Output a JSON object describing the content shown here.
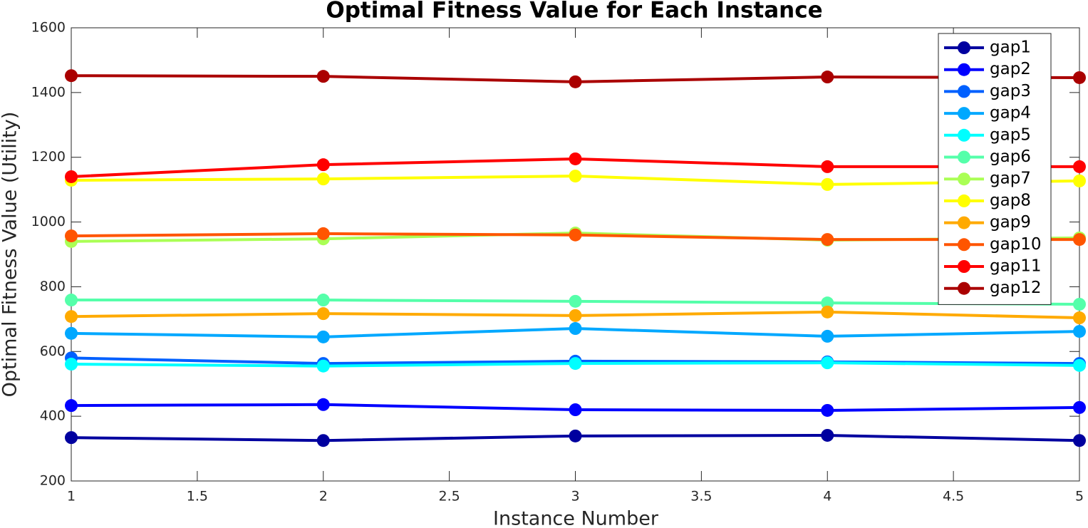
{
  "chart_data": {
    "type": "line",
    "title": "Optimal Fitness Value for Each Instance",
    "x_label": "Instance Number",
    "y_label": "Optimal Fitness Value (Utility)",
    "x": [
      1,
      2,
      3,
      4,
      5
    ],
    "xlim": [
      1,
      5
    ],
    "xticks": [
      1,
      1.5,
      2,
      2.5,
      3,
      3.5,
      4,
      4.5,
      5
    ],
    "ylim": [
      200,
      1600
    ],
    "yticks": [
      200,
      400,
      600,
      800,
      1000,
      1200,
      1400,
      1600
    ],
    "grid": false,
    "legend": "upper right",
    "series": [
      {
        "name": "gap1",
        "color": "#00009f",
        "values": [
          334,
          325,
          339,
          341,
          325
        ]
      },
      {
        "name": "gap2",
        "color": "#0000ff",
        "values": [
          433,
          436,
          420,
          418,
          427
        ]
      },
      {
        "name": "gap3",
        "color": "#0060ff",
        "values": [
          580,
          563,
          570,
          568,
          563
        ]
      },
      {
        "name": "gap4",
        "color": "#00a8ff",
        "values": [
          656,
          645,
          671,
          647,
          662
        ]
      },
      {
        "name": "gap5",
        "color": "#00ffff",
        "values": [
          561,
          555,
          563,
          565,
          557
        ]
      },
      {
        "name": "gap6",
        "color": "#55ffaa",
        "values": [
          759,
          759,
          755,
          750,
          746
        ]
      },
      {
        "name": "gap7",
        "color": "#aaff55",
        "values": [
          940,
          948,
          966,
          944,
          951
        ]
      },
      {
        "name": "gap8",
        "color": "#ffff00",
        "values": [
          1129,
          1133,
          1142,
          1116,
          1127
        ]
      },
      {
        "name": "gap9",
        "color": "#ffaa00",
        "values": [
          708,
          717,
          711,
          722,
          704
        ]
      },
      {
        "name": "gap10",
        "color": "#ff5500",
        "values": [
          957,
          964,
          960,
          946,
          946
        ]
      },
      {
        "name": "gap11",
        "color": "#ff0000",
        "values": [
          1140,
          1177,
          1195,
          1171,
          1171
        ]
      },
      {
        "name": "gap12",
        "color": "#aa0000",
        "values": [
          1452,
          1450,
          1433,
          1448,
          1446
        ]
      }
    ]
  }
}
